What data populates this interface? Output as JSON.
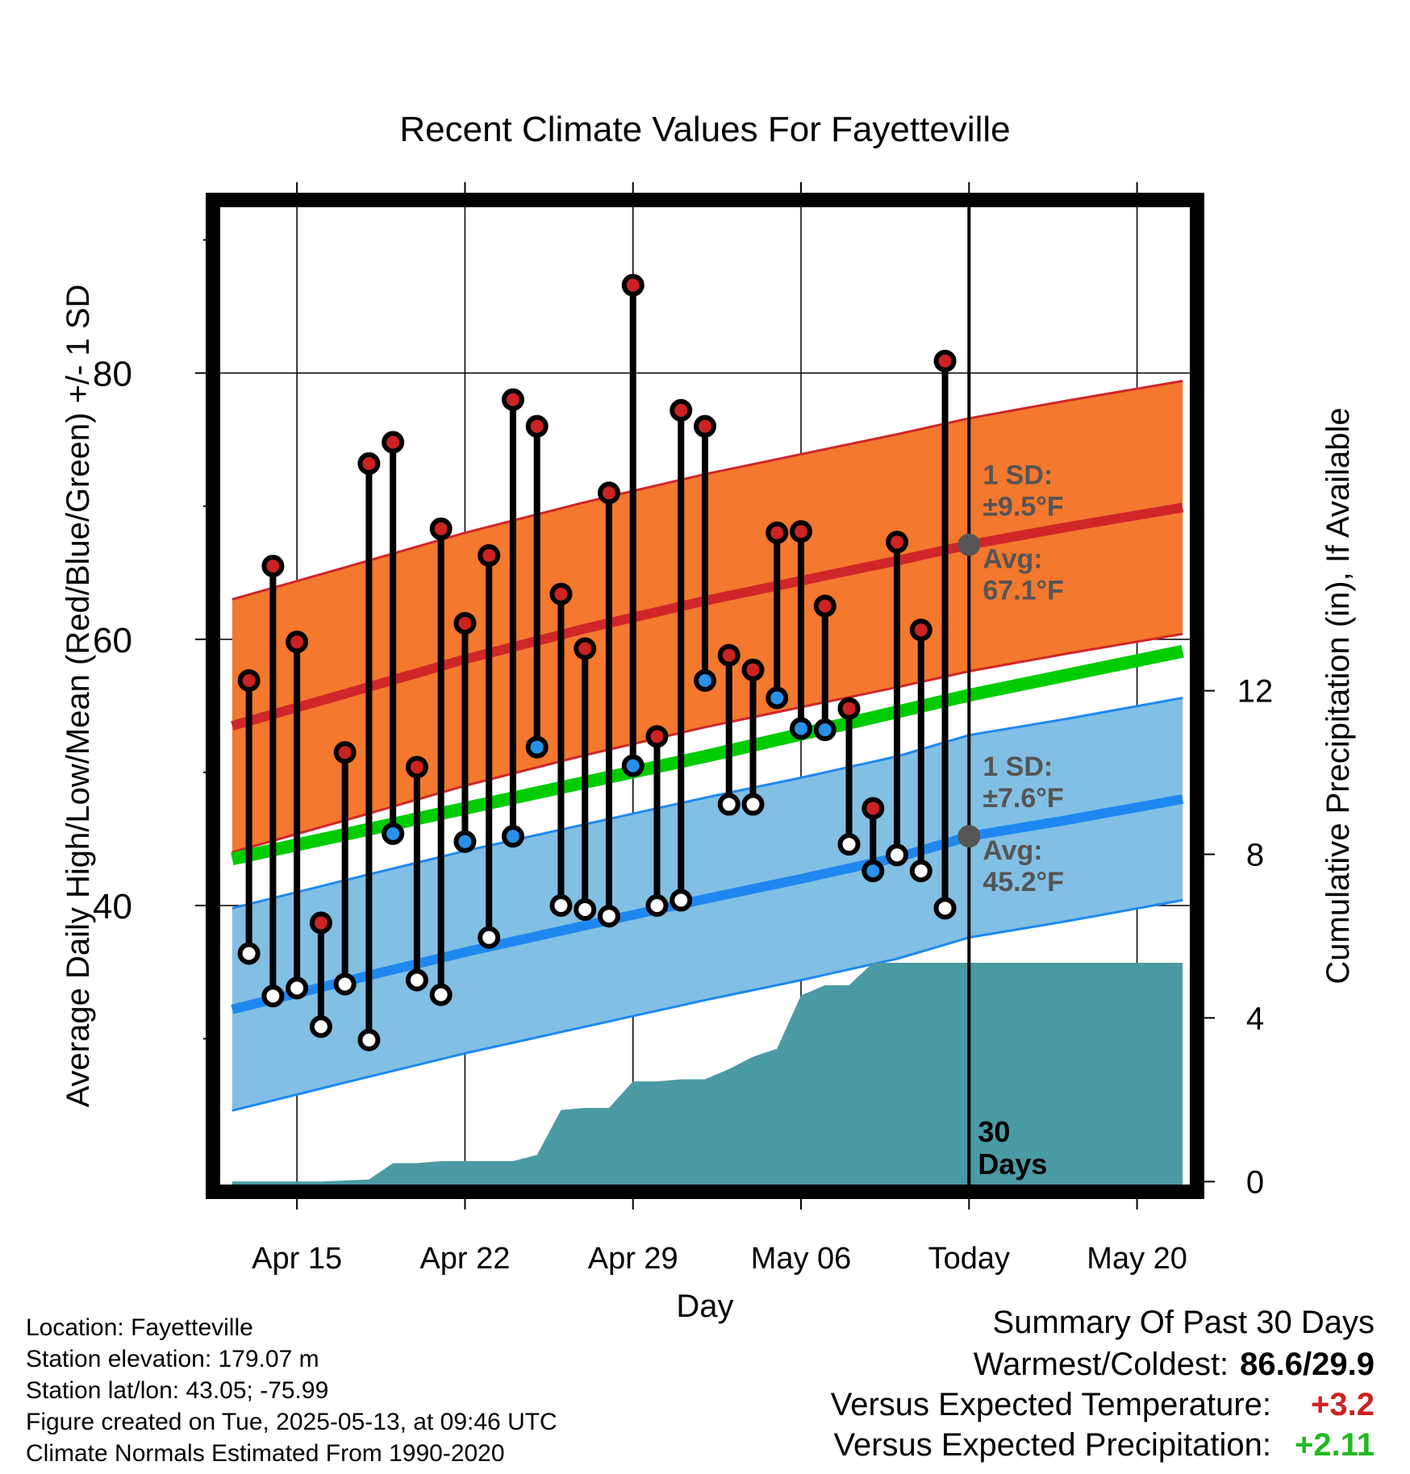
{
  "chart_data": {
    "type": "line",
    "title": "Recent Climate Values For Fayetteville",
    "xlabel": "Day",
    "ylabel": "Average Daily High/Low/Mean (Red/Blue/Green) +/- 1 SD",
    "y2label": "Cumulative Precipitation (in), If Available",
    "x_range": [
      -3.5,
      37.5
    ],
    "ylim": [
      18.5,
      93.0
    ],
    "y2lim": [
      -0.25,
      24.0
    ],
    "y_ticks": [
      40,
      60,
      80
    ],
    "y_minor_ticks": [
      30,
      50,
      70,
      90
    ],
    "y2_ticks": [
      0,
      4,
      8,
      12
    ],
    "x_ticks": [
      {
        "x": 0,
        "label": "Apr 15"
      },
      {
        "x": 7,
        "label": "Apr 22"
      },
      {
        "x": 14,
        "label": "Apr 29"
      },
      {
        "x": 21,
        "label": "May 06"
      },
      {
        "x": 28,
        "label": "Today"
      },
      {
        "x": 35,
        "label": "May 20"
      }
    ],
    "grid": true,
    "normals": {
      "high_avg": {
        "x": [
          -2.7,
          2,
          7,
          12,
          17,
          21,
          25,
          28,
          32,
          36.9
        ],
        "values": [
          53.5,
          55.9,
          58.5,
          60.8,
          62.9,
          64.4,
          65.9,
          67.1,
          68.4,
          69.9
        ]
      },
      "high_sd": 9.5,
      "low_avg": {
        "x": [
          -2.7,
          2,
          7,
          12,
          17,
          21,
          25,
          28,
          32,
          36.9
        ],
        "values": [
          32.2,
          34.3,
          36.5,
          38.5,
          40.5,
          42.0,
          43.6,
          45.2,
          46.4,
          48.0
        ]
      },
      "low_sd": 7.6,
      "mean": {
        "x": [
          -2.7,
          7,
          17,
          28,
          36.9
        ],
        "values": [
          43.5,
          47.3,
          51.2,
          55.8,
          59.1
        ]
      }
    },
    "daily": [
      {
        "x": -2,
        "high": 56.9,
        "low": 36.4,
        "low_below_normal": true
      },
      {
        "x": -1,
        "high": 65.5,
        "low": 33.2,
        "low_below_normal": true
      },
      {
        "x": 0,
        "high": 59.8,
        "low": 33.8,
        "low_below_normal": true
      },
      {
        "x": 1,
        "high": 38.7,
        "low": 30.9,
        "low_below_normal": true
      },
      {
        "x": 2,
        "high": 51.5,
        "low": 34.1,
        "low_below_normal": true
      },
      {
        "x": 3,
        "high": 73.2,
        "low": 29.9,
        "low_below_normal": true
      },
      {
        "x": 4,
        "high": 74.8,
        "low": 45.4,
        "low_below_normal": false
      },
      {
        "x": 5,
        "high": 50.4,
        "low": 34.4,
        "low_below_normal": true
      },
      {
        "x": 6,
        "high": 68.3,
        "low": 33.3,
        "low_below_normal": true
      },
      {
        "x": 7,
        "high": 61.2,
        "low": 44.8,
        "low_below_normal": false
      },
      {
        "x": 8,
        "high": 66.3,
        "low": 37.6,
        "low_below_normal": true
      },
      {
        "x": 9,
        "high": 78.0,
        "low": 45.2,
        "low_below_normal": false
      },
      {
        "x": 10,
        "high": 76.0,
        "low": 51.9,
        "low_below_normal": false
      },
      {
        "x": 11,
        "high": 63.4,
        "low": 40.0,
        "low_below_normal": true
      },
      {
        "x": 12,
        "high": 59.3,
        "low": 39.7,
        "low_below_normal": true
      },
      {
        "x": 13,
        "high": 71.0,
        "low": 39.2,
        "low_below_normal": true
      },
      {
        "x": 14,
        "high": 86.6,
        "low": 50.5,
        "low_below_normal": false
      },
      {
        "x": 15,
        "high": 52.7,
        "low": 40.0,
        "low_below_normal": true
      },
      {
        "x": 16,
        "high": 77.2,
        "low": 40.4,
        "low_below_normal": true
      },
      {
        "x": 17,
        "high": 76.0,
        "low": 56.9,
        "low_below_normal": false
      },
      {
        "x": 18,
        "high": 58.8,
        "low": 47.6,
        "low_below_normal": true
      },
      {
        "x": 19,
        "high": 57.7,
        "low": 47.6,
        "low_below_normal": true
      },
      {
        "x": 20,
        "high": 68.0,
        "low": 55.6,
        "low_below_normal": false
      },
      {
        "x": 21,
        "high": 68.1,
        "low": 53.3,
        "low_below_normal": false
      },
      {
        "x": 22,
        "high": 62.5,
        "low": 53.2,
        "low_below_normal": false
      },
      {
        "x": 23,
        "high": 54.8,
        "low": 44.6,
        "low_below_normal": true
      },
      {
        "x": 24,
        "high": 47.3,
        "low": 42.6,
        "low_below_normal": false
      },
      {
        "x": 25,
        "high": 67.3,
        "low": 43.8,
        "low_below_normal": true
      },
      {
        "x": 26,
        "high": 60.7,
        "low": 42.6,
        "low_below_normal": true
      },
      {
        "x": 27,
        "high": 80.9,
        "low": 39.8,
        "low_below_normal": true
      }
    ],
    "precipitation": {
      "x": [
        -2.7,
        1,
        3,
        4,
        5,
        6,
        7,
        8,
        9,
        10,
        11,
        12,
        13,
        14,
        15,
        16,
        17,
        18,
        19,
        20,
        21,
        22,
        23,
        24,
        25,
        26,
        27,
        28,
        36.9
      ],
      "values": [
        0.0,
        0.0,
        0.05,
        0.45,
        0.45,
        0.5,
        0.5,
        0.5,
        0.5,
        0.65,
        1.75,
        1.8,
        1.8,
        2.45,
        2.45,
        2.5,
        2.5,
        2.75,
        3.05,
        3.25,
        4.55,
        4.8,
        4.8,
        5.35,
        5.35,
        5.35,
        5.35,
        5.35,
        5.35
      ]
    },
    "annotations": {
      "high_sd_label": "1 SD:",
      "high_sd_value": "±9.5°F",
      "high_avg_label": "Avg:",
      "high_avg_value": "67.1°F",
      "high_marker_value": 67.1,
      "low_sd_label": "1 SD:",
      "low_sd_value": "±7.6°F",
      "low_avg_label": "Avg:",
      "low_avg_value": "45.2°F",
      "low_marker_value": 45.2,
      "window_label_1": "30",
      "window_label_2": "Days"
    },
    "colors": {
      "high_band": "#f4782d",
      "high_line": "#d0262a",
      "low_band": "#82bfe4",
      "low_line": "#1e88f0",
      "mean_line": "#00cc00",
      "precip": "#4a9aa4",
      "high_dot": "#cc2222",
      "low_dot_below": "#ffffff",
      "low_dot_above": "#2890e8",
      "annotation": "#555555",
      "warm": "#cc2222",
      "wet": "#22b922"
    }
  },
  "info": {
    "location": "Location: Fayetteville",
    "elevation": "Station elevation: 179.07 m",
    "latlon": "Station lat/lon: 43.05; -75.99",
    "created": "Figure created on Tue, 2025-05-13, at 09:46 UTC",
    "normals": "Climate Normals Estimated From 1990-2020"
  },
  "summary": {
    "heading": "Summary Of Past 30 Days",
    "extremes_label": "Warmest/Coldest:",
    "extremes_value": "86.6/29.9",
    "temp_label": "Versus Expected Temperature:",
    "temp_value": "+3.2",
    "precip_label": "Versus Expected Precipitation:",
    "precip_value": "+2.11"
  }
}
